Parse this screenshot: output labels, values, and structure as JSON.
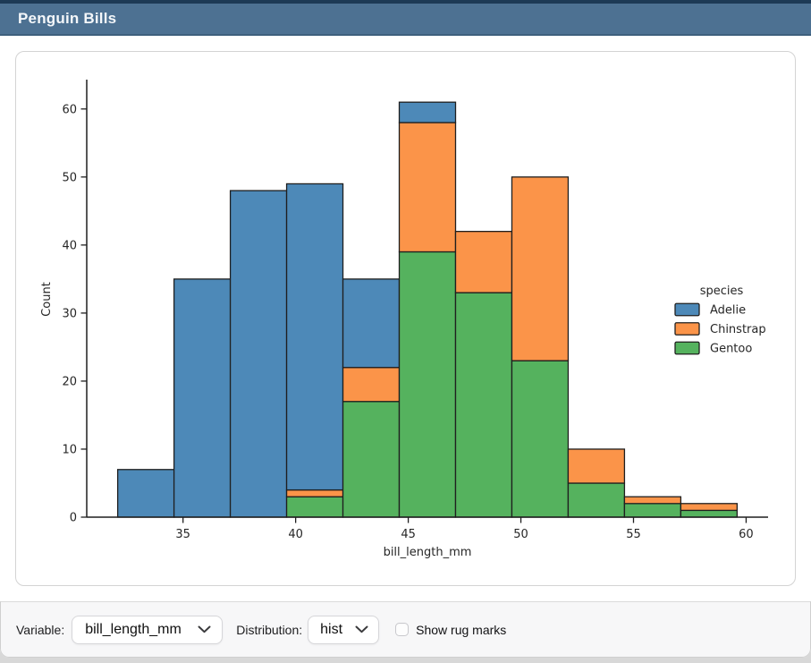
{
  "window": {
    "title": "Penguin Bills"
  },
  "controls": {
    "variable_label": "Variable:",
    "variable_value": "bill_length_mm",
    "distribution_label": "Distribution:",
    "distribution_value": "hist",
    "rug_label": "Show rug marks",
    "rug_checked": false
  },
  "chart_data": {
    "type": "bar",
    "mode": "stacked-histogram",
    "xlabel": "bill_length_mm",
    "ylabel": "Count",
    "legend_title": "species",
    "legend_position": "center-right",
    "grid": false,
    "bin_edges": [
      32.1,
      34.6,
      37.1,
      39.6,
      42.1,
      44.6,
      47.1,
      49.6,
      52.1,
      54.6,
      57.1,
      59.6
    ],
    "series": [
      {
        "name": "Adelie",
        "color": "#4d89b8",
        "values": [
          7,
          35,
          48,
          45,
          13,
          3,
          0,
          0,
          0,
          0,
          0
        ]
      },
      {
        "name": "Chinstrap",
        "color": "#fb9449",
        "values": [
          0,
          0,
          0,
          1,
          5,
          19,
          9,
          27,
          5,
          1,
          1
        ]
      },
      {
        "name": "Gentoo",
        "color": "#55b25e",
        "values": [
          0,
          0,
          0,
          3,
          17,
          39,
          33,
          23,
          5,
          2,
          1
        ]
      }
    ],
    "stack_bottom_to_top": [
      "Gentoo",
      "Chinstrap",
      "Adelie"
    ],
    "bar_totals": [
      7,
      35,
      48,
      49,
      35,
      61,
      42,
      50,
      10,
      3,
      2
    ],
    "x_ticks": [
      35,
      40,
      45,
      50,
      55,
      60
    ],
    "y_ticks": [
      0,
      10,
      20,
      30,
      40,
      50,
      60
    ],
    "xlim": [
      30.725,
      60.975
    ],
    "ylim": [
      0,
      64.05
    ],
    "edge_color": "#1f1f1f",
    "text_color": "#262626"
  }
}
